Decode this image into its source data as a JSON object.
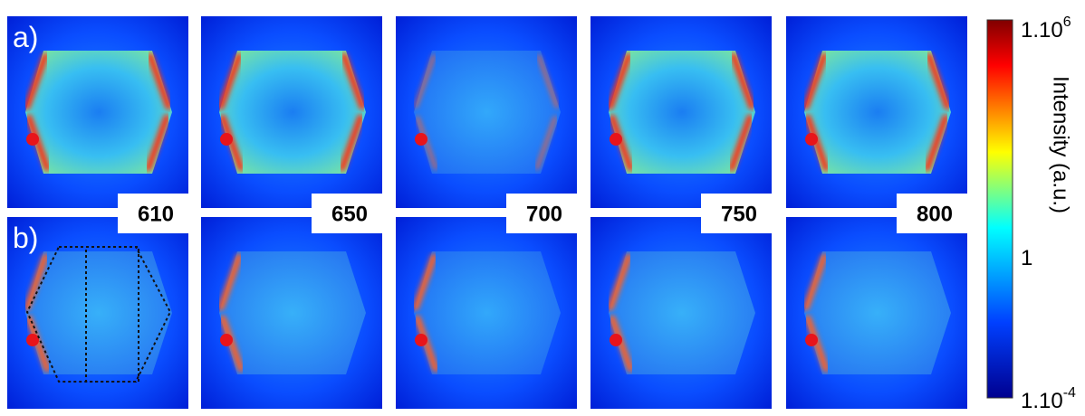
{
  "panel_labels": [
    "a)",
    "b)"
  ],
  "wavelengths": [
    "610",
    "650",
    "700",
    "750",
    "800"
  ],
  "colorbar": {
    "label": "Intensity (a.u.)",
    "ticks": [
      {
        "base": "1.10",
        "exp": "6"
      },
      {
        "base": "1"
      },
      {
        "base": "1.10",
        "exp": "-4"
      }
    ]
  }
}
